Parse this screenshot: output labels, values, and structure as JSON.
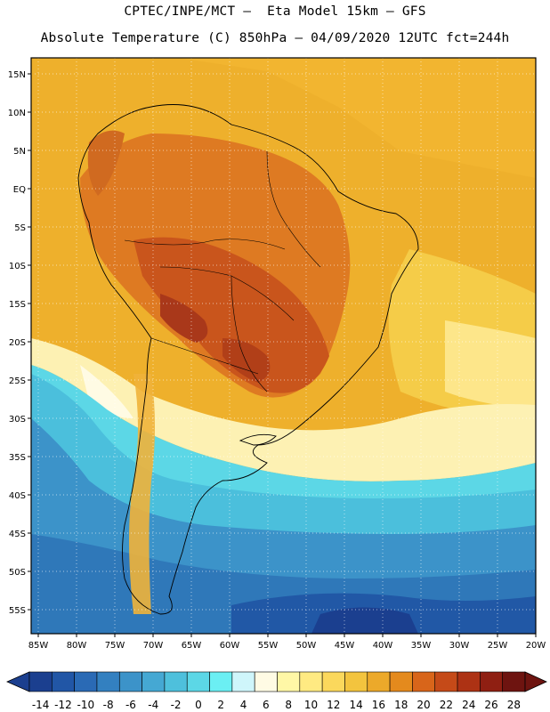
{
  "title_line1": "CPTEC/INPE/MCT –  Eta Model 15km – GFS",
  "title_line2": "Absolute Temperature (C) 850hPa – 04/09/2020 12UTC fct=244h",
  "lat_labels": [
    "15N",
    "10N",
    "5N",
    "EQ",
    "5S",
    "10S",
    "15S",
    "20S",
    "25S",
    "30S",
    "35S",
    "40S",
    "45S",
    "50S",
    "55S"
  ],
  "lon_labels": [
    "85W",
    "80W",
    "75W",
    "70W",
    "65W",
    "60W",
    "55W",
    "50W",
    "45W",
    "40W",
    "35W",
    "30W",
    "25W",
    "20W"
  ],
  "colorbar": {
    "tick_labels": [
      "-14",
      "-12",
      "-10",
      "-8",
      "-6",
      "-4",
      "-2",
      "0",
      "2",
      "4",
      "6",
      "8",
      "10",
      "12",
      "14",
      "16",
      "18",
      "20",
      "22",
      "24",
      "26",
      "28"
    ],
    "colors": [
      "#1b3f8f",
      "#2156a6",
      "#2a6ab5",
      "#3380c0",
      "#3c93c9",
      "#45a8d3",
      "#4ec0dc",
      "#5cd7e6",
      "#6beff3",
      "#cff6fb",
      "#fffbe4",
      "#fff7a6",
      "#ffea82",
      "#fbd85c",
      "#f3c43e",
      "#eca92a",
      "#e48a1d",
      "#d8651a",
      "#c54a18",
      "#ad3214",
      "#8f1f12",
      "#6e1410"
    ]
  },
  "map": {
    "background_color": "#eeb02c",
    "cold_color": "#3da9d8",
    "very_cold_color": "#2158a6",
    "hot_color": "#c8581f"
  }
}
